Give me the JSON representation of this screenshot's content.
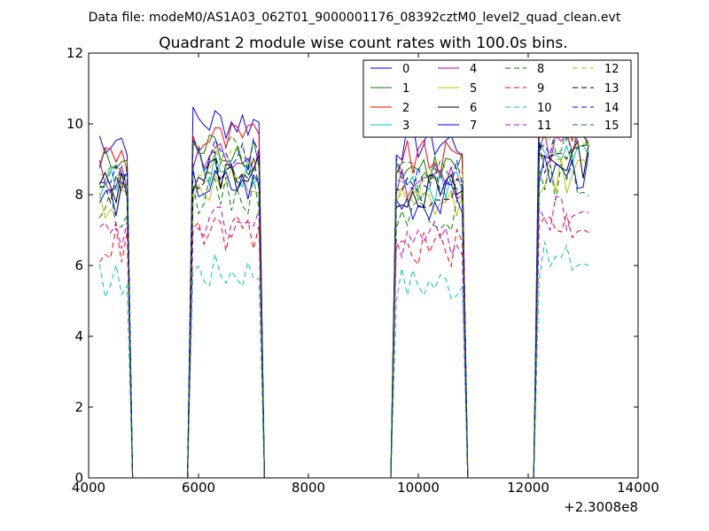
{
  "chart_data": {
    "type": "line",
    "suptitle": "Data file: modeM0/AS1A03_062T01_9000001176_08392cztM0_level2_quad_clean.evt",
    "title": "Quadrant 2 module wise count rates with 100.0s bins.",
    "xlabel": "",
    "ylabel": "",
    "x_offset_label": "+2.3008e8",
    "xlim": [
      4000,
      14000
    ],
    "ylim": [
      0,
      12
    ],
    "xticks": [
      4000,
      6000,
      8000,
      10000,
      12000,
      14000
    ],
    "yticks": [
      0,
      2,
      4,
      6,
      8,
      10,
      12
    ],
    "legend_location": "top-right",
    "legend_columns": 4,
    "series": [
      {
        "name": "0",
        "color": "#0000ff",
        "style": "solid",
        "base": 1.17
      },
      {
        "name": "1",
        "color": "#008000",
        "style": "solid",
        "base": 1.08
      },
      {
        "name": "2",
        "color": "#ff0000",
        "style": "solid",
        "base": 1.11
      },
      {
        "name": "3",
        "color": "#00bfbf",
        "style": "solid",
        "base": 1.02
      },
      {
        "name": "4",
        "color": "#bf00bf",
        "style": "solid",
        "base": 1.04
      },
      {
        "name": "5",
        "color": "#bfbf00",
        "style": "solid",
        "base": 0.95
      },
      {
        "name": "6",
        "color": "#000000",
        "style": "solid",
        "base": 1.0
      },
      {
        "name": "7",
        "color": "#0000ff",
        "style": "solid",
        "base": 0.96
      },
      {
        "name": "8",
        "color": "#008000",
        "style": "dashed",
        "base": 0.93
      },
      {
        "name": "9",
        "color": "#ff0000",
        "style": "dashed",
        "base": 0.8
      },
      {
        "name": "10",
        "color": "#00bfbf",
        "style": "dashed",
        "base": 0.68
      },
      {
        "name": "11",
        "color": "#bf00bf",
        "style": "dashed",
        "base": 0.83
      },
      {
        "name": "12",
        "color": "#bfbf00",
        "style": "dashed",
        "base": 1.03
      },
      {
        "name": "13",
        "color": "#000000",
        "style": "dashed",
        "base": 1.01
      },
      {
        "name": "14",
        "color": "#0000ff",
        "style": "dashed",
        "base": 1.05
      },
      {
        "name": "15",
        "color": "#008000",
        "style": "dashed",
        "base": 1.06
      }
    ],
    "active_segments": [
      {
        "start": 4200,
        "end": 4750,
        "rate": 8.2
      },
      {
        "start": 5850,
        "end": 7150,
        "rate": 8.6
      },
      {
        "start": 9550,
        "end": 10850,
        "rate": 8.1
      },
      {
        "start": 12150,
        "end": 13150,
        "rate": 9.0
      }
    ],
    "gap_rate": 0,
    "bin_width_s": 100
  }
}
